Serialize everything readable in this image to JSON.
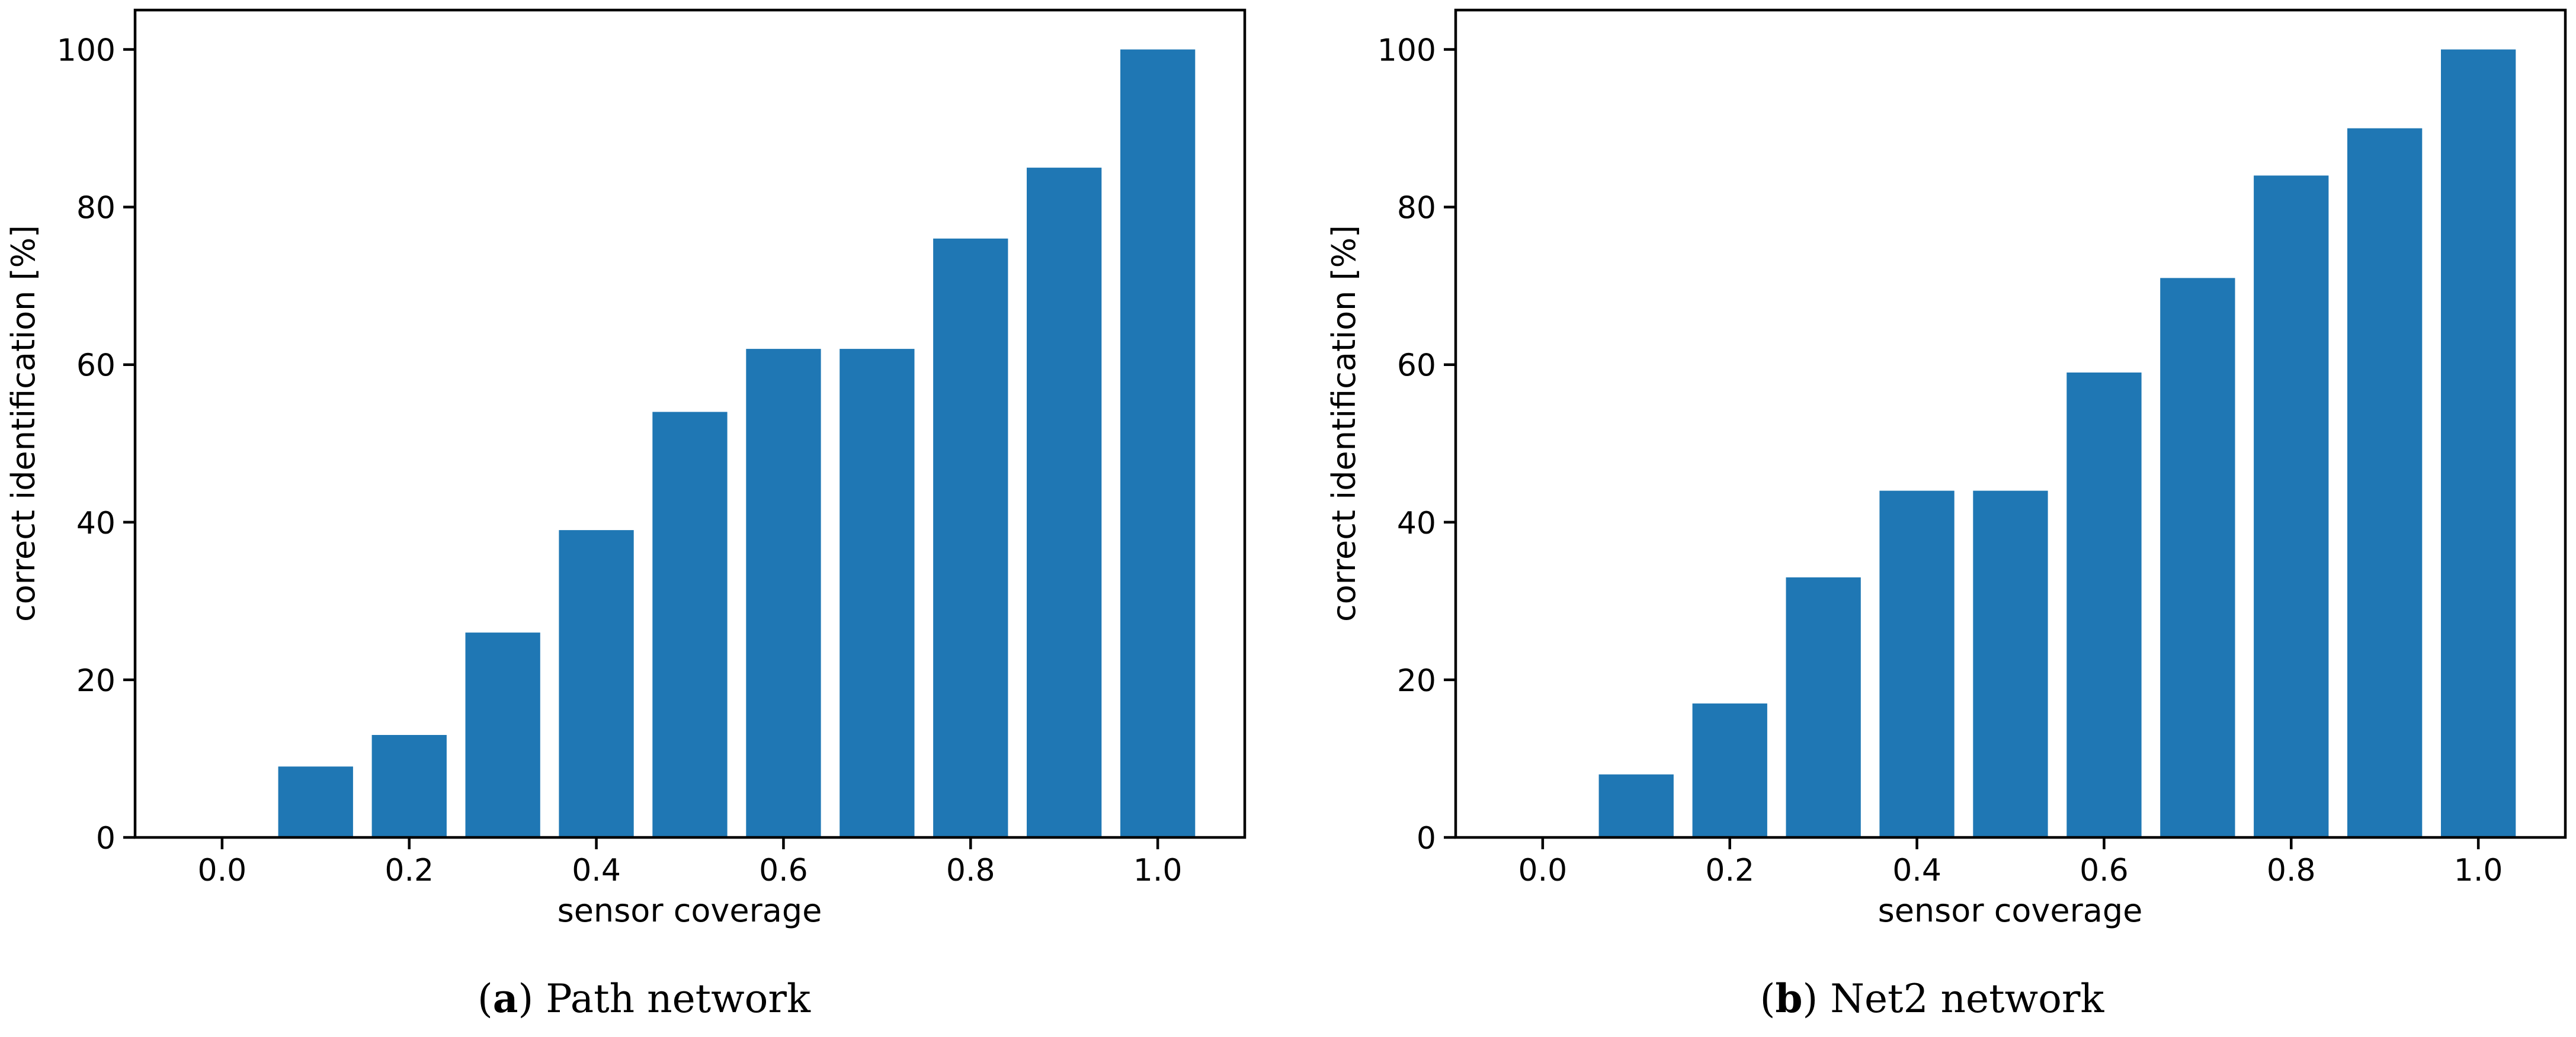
{
  "figure": {
    "background": "#ffffff",
    "bar_color": "#1f77b4",
    "axis_color": "#000000"
  },
  "chart_data": [
    {
      "type": "bar",
      "panel": "a",
      "caption": {
        "open": "(",
        "label": "a",
        "close": ") ",
        "text": "Path network"
      },
      "xlabel": "sensor coverage",
      "ylabel": "correct identification [%]",
      "categories": [
        0.1,
        0.2,
        0.3,
        0.4,
        0.5,
        0.6,
        0.7,
        0.8,
        0.9,
        1.0
      ],
      "values": [
        9,
        13,
        26,
        39,
        54,
        62,
        62,
        76,
        85,
        100
      ],
      "bar_width": 0.08,
      "x_tick_values": [
        0.0,
        0.2,
        0.4,
        0.6,
        0.8,
        1.0
      ],
      "x_tick_labels": [
        "0.0",
        "0.2",
        "0.4",
        "0.6",
        "0.8",
        "1.0"
      ],
      "y_tick_values": [
        0,
        20,
        40,
        60,
        80,
        100
      ],
      "y_tick_labels": [
        "0",
        "20",
        "40",
        "60",
        "80",
        "100"
      ],
      "xlim": [
        -0.093,
        1.093
      ],
      "ylim": [
        0,
        105
      ],
      "grid": false,
      "legend": null
    },
    {
      "type": "bar",
      "panel": "b",
      "caption": {
        "open": "(",
        "label": "b",
        "close": ") ",
        "text": "Net2 network"
      },
      "xlabel": "sensor coverage",
      "ylabel": "correct identification [%]",
      "categories": [
        0.1,
        0.2,
        0.3,
        0.4,
        0.5,
        0.6,
        0.7,
        0.8,
        0.9,
        1.0
      ],
      "values": [
        8,
        17,
        33,
        44,
        44,
        59,
        71,
        84,
        90,
        100
      ],
      "bar_width": 0.08,
      "x_tick_values": [
        0.0,
        0.2,
        0.4,
        0.6,
        0.8,
        1.0
      ],
      "x_tick_labels": [
        "0.0",
        "0.2",
        "0.4",
        "0.6",
        "0.8",
        "1.0"
      ],
      "y_tick_values": [
        0,
        20,
        40,
        60,
        80,
        100
      ],
      "y_tick_labels": [
        "0",
        "20",
        "40",
        "60",
        "80",
        "100"
      ],
      "xlim": [
        -0.093,
        1.093
      ],
      "ylim": [
        0,
        105
      ],
      "grid": false,
      "legend": null
    }
  ]
}
